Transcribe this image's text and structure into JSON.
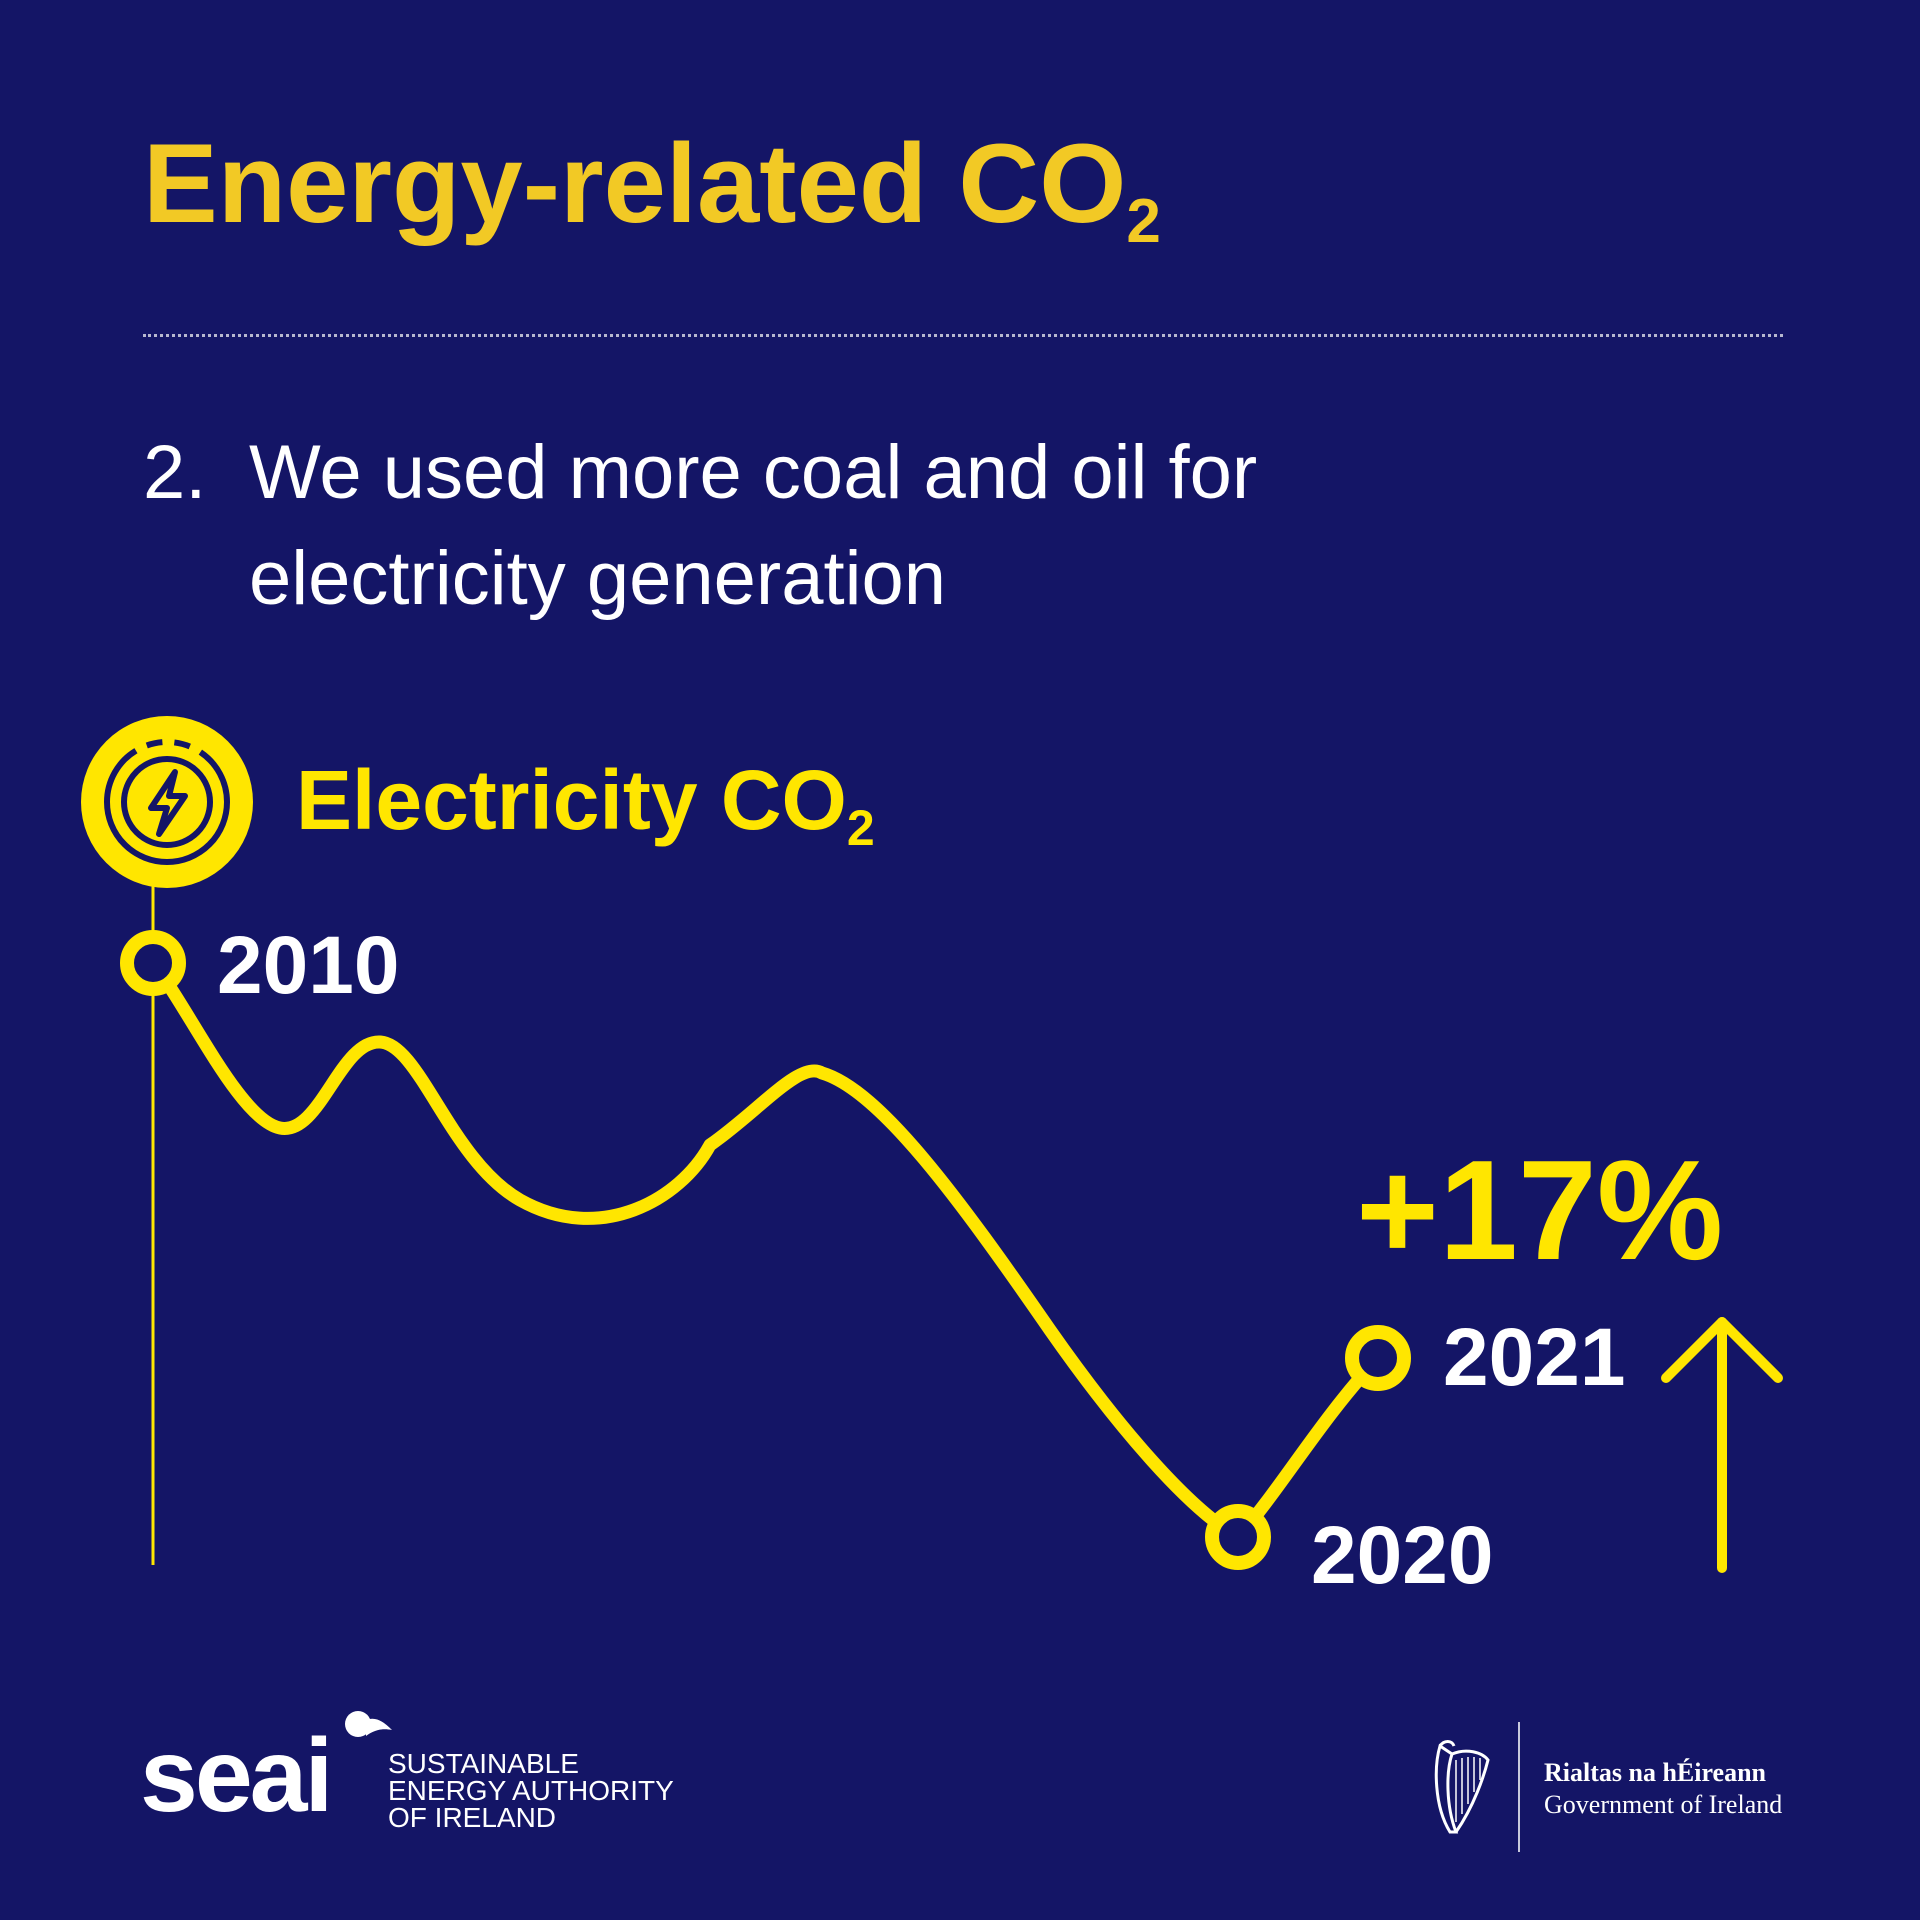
{
  "heading": {
    "text": "Energy-related CO",
    "subscript": "2"
  },
  "point": {
    "number": "2.",
    "lines": [
      "We used more coal and oil for",
      "electricity generation"
    ]
  },
  "chart": {
    "title": "Electricity CO",
    "title_subscript": "2",
    "icon": "electricity-bolt-icon",
    "labels": {
      "start": "2010",
      "low": "2020",
      "end": "2021"
    },
    "change": "+17%",
    "change_direction": "up-arrow-icon",
    "line_color": "#ffe600"
  },
  "footer": {
    "seai": {
      "wordmark": "seai",
      "lines": [
        "SUSTAINABLE",
        "ENERGY AUTHORITY",
        "OF IRELAND"
      ]
    },
    "government": {
      "emblem": "harp-icon",
      "irish": "Rialtas na hÉireann",
      "english": "Government of Ireland"
    }
  },
  "colors": {
    "background": "#141566",
    "title": "#f2c925",
    "accent": "#ffe600",
    "text": "#ffffff"
  }
}
